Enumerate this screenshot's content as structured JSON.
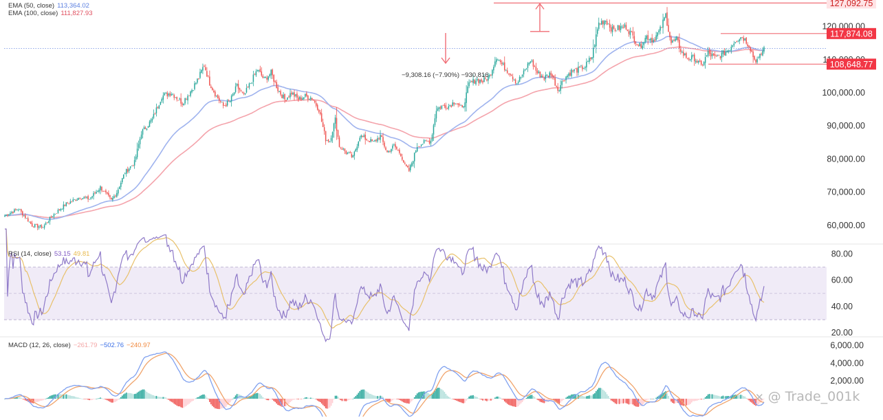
{
  "legends": {
    "ema50": {
      "label": "EMA (50, close)",
      "value": "113,364.02",
      "color": "#5b7fe0"
    },
    "ema100": {
      "label": "EMA (100, close)",
      "value": "111,827.93",
      "color": "#e0505f"
    },
    "rsi": {
      "label": "RSI (14, close)",
      "value": "53.15",
      "ma_value": "49.81",
      "color": "#7e57c2",
      "ma_color": "#e8b84a"
    },
    "macd": {
      "label": "MACD (12, 26, close)",
      "hist_value": "−261.79",
      "macd_value": "−502.76",
      "signal_value": "−240.97",
      "macd_color": "#3b6fe6",
      "signal_color": "#f0883e"
    }
  },
  "price_labels": {
    "top": "127,092.75",
    "resistance": "117,874.08",
    "support": "108,648.77"
  },
  "measure_text": "−9,308.16 (−7.90%) −930,816",
  "watermark": {
    "mark": "✕",
    "text": "@ Trade_001k"
  },
  "colors": {
    "up": "#26a69a",
    "down": "#ef5350",
    "hline": "#f06d75",
    "label_bg": "#f23645"
  },
  "chart_data": [
    {
      "type": "candlestick",
      "title": "",
      "yticks": [
        "60,000.00",
        "70,000.00",
        "80,000.00",
        "90,000.00",
        "100,000.00",
        "110,000.00",
        "120,000.00"
      ],
      "ylim": [
        55000,
        128000
      ],
      "anchors": [
        [
          0,
          63000
        ],
        [
          10,
          65000
        ],
        [
          20,
          60000
        ],
        [
          28,
          59500
        ],
        [
          35,
          63000
        ],
        [
          45,
          66500
        ],
        [
          55,
          68500
        ],
        [
          62,
          68000
        ],
        [
          70,
          71500
        ],
        [
          78,
          67500
        ],
        [
          82,
          70000
        ],
        [
          88,
          76000
        ],
        [
          95,
          79000
        ],
        [
          100,
          88000
        ],
        [
          108,
          92000
        ],
        [
          115,
          99000
        ],
        [
          122,
          100000
        ],
        [
          130,
          97000
        ],
        [
          137,
          101000
        ],
        [
          142,
          104500
        ],
        [
          146,
          108500
        ],
        [
          150,
          103000
        ],
        [
          155,
          99000
        ],
        [
          160,
          96000
        ],
        [
          165,
          97500
        ],
        [
          170,
          102000
        ],
        [
          175,
          99000
        ],
        [
          180,
          103000
        ],
        [
          185,
          107000
        ],
        [
          190,
          104000
        ],
        [
          195,
          106000
        ],
        [
          200,
          101000
        ],
        [
          205,
          98000
        ],
        [
          210,
          100000
        ],
        [
          215,
          98000
        ],
        [
          220,
          99000
        ],
        [
          225,
          98500
        ],
        [
          230,
          95000
        ],
        [
          235,
          86000
        ],
        [
          238,
          85500
        ],
        [
          242,
          92000
        ],
        [
          245,
          84000
        ],
        [
          250,
          82000
        ],
        [
          255,
          80500
        ],
        [
          260,
          87000
        ],
        [
          265,
          86000
        ],
        [
          270,
          85000
        ],
        [
          275,
          87000
        ],
        [
          280,
          82000
        ],
        [
          285,
          84000
        ],
        [
          290,
          81500
        ],
        [
          293,
          78000
        ],
        [
          296,
          76500
        ],
        [
          299,
          80000
        ],
        [
          302,
          84000
        ],
        [
          307,
          85000
        ],
        [
          312,
          85500
        ],
        [
          316,
          95000
        ],
        [
          320,
          96000
        ],
        [
          325,
          96000
        ],
        [
          330,
          97500
        ],
        [
          335,
          95000
        ],
        [
          340,
          102500
        ],
        [
          345,
          104000
        ],
        [
          350,
          103500
        ],
        [
          355,
          105000
        ],
        [
          360,
          111000
        ],
        [
          365,
          108000
        ],
        [
          370,
          106000
        ],
        [
          375,
          103000
        ],
        [
          380,
          106000
        ],
        [
          385,
          110000
        ],
        [
          390,
          106000
        ],
        [
          395,
          104500
        ],
        [
          400,
          106000
        ],
        [
          405,
          101000
        ],
        [
          410,
          104500
        ],
        [
          415,
          106500
        ],
        [
          420,
          107000
        ],
        [
          425,
          108000
        ],
        [
          430,
          111000
        ],
        [
          435,
          121000
        ],
        [
          440,
          122000
        ],
        [
          445,
          119000
        ],
        [
          450,
          119500
        ],
        [
          455,
          120000
        ],
        [
          460,
          117000
        ],
        [
          465,
          114000
        ],
        [
          470,
          117000
        ],
        [
          475,
          116000
        ],
        [
          480,
          119000
        ],
        [
          484,
          123500
        ],
        [
          488,
          115000
        ],
        [
          492,
          116000
        ],
        [
          496,
          112000
        ],
        [
          500,
          110500
        ],
        [
          505,
          110500
        ],
        [
          510,
          108000
        ],
        [
          515,
          112000
        ],
        [
          520,
          110500
        ],
        [
          525,
          111500
        ],
        [
          530,
          113000
        ],
        [
          535,
          116000
        ],
        [
          540,
          117000
        ],
        [
          545,
          114500
        ],
        [
          549,
          110000
        ],
        [
          552,
          110000
        ],
        [
          556,
          113500
        ]
      ],
      "series": [
        {
          "name": "EMA (50, close)",
          "period": 50
        },
        {
          "name": "EMA (100, close)",
          "period": 100
        }
      ],
      "hlines": [
        127092.75,
        117874.08,
        108648.77
      ],
      "current_price": 113400
    },
    {
      "type": "line",
      "title": "RSI (14, close)",
      "yticks": [
        "20.00",
        "40.00",
        "60.00",
        "80.00"
      ],
      "ylim": [
        18,
        86
      ],
      "band": [
        30,
        70
      ],
      "midline": 50,
      "series": [
        {
          "name": "RSI",
          "source": "price",
          "period": 14
        },
        {
          "name": "RSI MA",
          "source": "RSI",
          "period": 14
        }
      ]
    },
    {
      "type": "bar",
      "title": "MACD (12, 26, close)",
      "yticks": [
        "2,000.00",
        "4,000.00",
        "6,000.00"
      ],
      "ylim": [
        -2000,
        6800
      ],
      "series": [
        {
          "name": "Histogram",
          "kind": "bar"
        },
        {
          "name": "MACD",
          "kind": "line",
          "fast": 12,
          "slow": 26
        },
        {
          "name": "Signal",
          "kind": "line",
          "period": 9
        }
      ]
    }
  ]
}
